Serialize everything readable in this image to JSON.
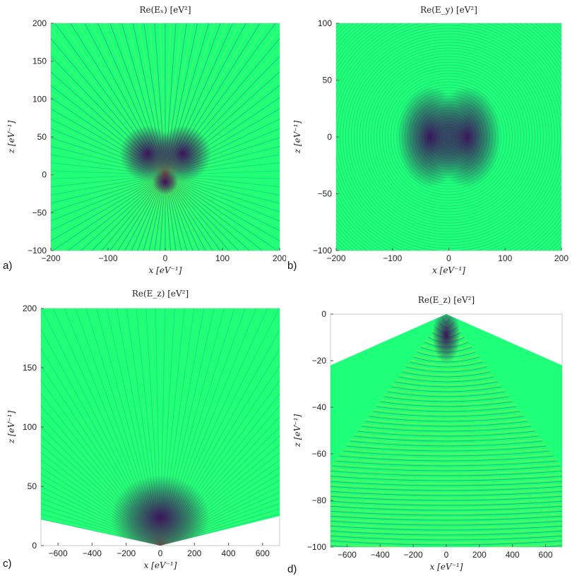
{
  "panels": [
    {
      "id": "a",
      "label": "a)",
      "title": "Re(Eₓ) [eV²]",
      "xlabel": "x [eV⁻¹]",
      "ylabel": "z [eV⁻¹]",
      "xticks": [
        "−200",
        "−100",
        "0",
        "100",
        "200"
      ],
      "yticks": [
        "−100",
        "−50",
        "0",
        "50",
        "100",
        "150",
        "200"
      ]
    },
    {
      "id": "b",
      "label": "b)",
      "title": "Re(E_y) [eV²]",
      "xlabel": "x [eV⁻¹]",
      "ylabel": "z [eV⁻¹]",
      "xticks": [
        "−200",
        "−100",
        "0",
        "100",
        "200"
      ],
      "yticks": [
        "−100",
        "−50",
        "0",
        "50",
        "100"
      ]
    },
    {
      "id": "c",
      "label": "c)",
      "title": "Re(E_z) [eV²]",
      "xlabel": "x [eV⁻¹]",
      "ylabel": "z [eV⁻¹]",
      "xticks": [
        "−600",
        "−400",
        "−200",
        "0",
        "200",
        "400",
        "600"
      ],
      "yticks": [
        "0",
        "50",
        "100",
        "150",
        "200"
      ]
    },
    {
      "id": "d",
      "label": "d)",
      "title": "Re(E_z) [eV²]",
      "xlabel": "x [eV⁻¹]",
      "ylabel": "z [eV⁻¹]",
      "xticks": [
        "−600",
        "−400",
        "−200",
        "0",
        "200",
        "400",
        "600"
      ],
      "yticks": [
        "−100",
        "−80",
        "−60",
        "−40",
        "−20",
        "0"
      ]
    }
  ],
  "chart_data": [
    {
      "type": "heatmap",
      "title": "Re(Eₓ) [eV²]",
      "xlabel": "x [eV⁻¹]",
      "ylabel": "z [eV⁻¹]",
      "xlim": [
        -200,
        200
      ],
      "ylim": [
        -100,
        200
      ],
      "xticks": [
        -200,
        -100,
        0,
        100,
        200
      ],
      "yticks": [
        -100,
        -50,
        0,
        50,
        100,
        150,
        200
      ],
      "pattern": "radial fringes from origin, strong lobes along ±x diagonals",
      "colors": {
        "background": "#1eff7a",
        "low": "#3a0a5a",
        "high": "#e6e61a"
      }
    },
    {
      "type": "heatmap",
      "title": "Re(E_y) [eV²]",
      "xlabel": "x [eV⁻¹]",
      "ylabel": "z [eV⁻¹]",
      "xlim": [
        -200,
        200
      ],
      "ylim": [
        -100,
        100
      ],
      "xticks": [
        -200,
        -100,
        0,
        100,
        200
      ],
      "yticks": [
        -100,
        -50,
        0,
        50,
        100
      ],
      "pattern": "concentric fringes with dark lobes left and right of origin",
      "colors": {
        "background": "#1eff7a",
        "low": "#3a0a5a",
        "high": "#e6e61a"
      }
    },
    {
      "type": "heatmap",
      "title": "Re(E_z) [eV²]",
      "xlabel": "x [eV⁻¹]",
      "ylabel": "z [eV⁻¹]",
      "xlim": [
        -700,
        700
      ],
      "ylim": [
        0,
        200
      ],
      "xticks": [
        -600,
        -400,
        -200,
        0,
        200,
        400,
        600
      ],
      "yticks": [
        0,
        50,
        100,
        150,
        200
      ],
      "pattern": "upward cone of fringes from origin; region below boundary line empty",
      "colors": {
        "background": "#1eff7a",
        "low": "#3a0a5a",
        "high": "#e6e61a"
      }
    },
    {
      "type": "heatmap",
      "title": "Re(E_z) [eV²]",
      "xlabel": "x [eV⁻¹]",
      "ylabel": "z [eV⁻¹]",
      "xlim": [
        -700,
        700
      ],
      "ylim": [
        -100,
        0
      ],
      "xticks": [
        -600,
        -400,
        -200,
        0,
        200,
        400,
        600
      ],
      "yticks": [
        -100,
        -80,
        -60,
        -40,
        -20,
        0
      ],
      "pattern": "downward cone of arc fringes from origin; region above boundary line empty",
      "colors": {
        "background": "#1eff7a",
        "low": "#3a0a5a",
        "high": "#e6e61a"
      }
    }
  ]
}
